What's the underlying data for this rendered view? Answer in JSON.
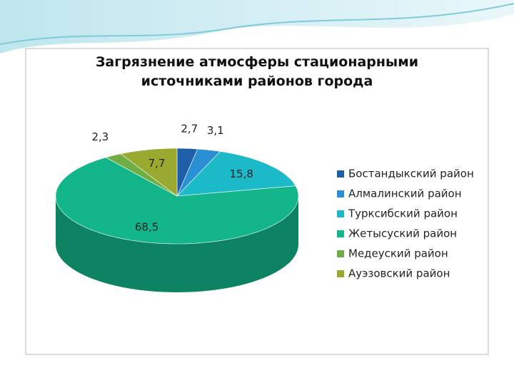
{
  "chart_data": {
    "type": "pie3d",
    "title": "Загрязнение  атмосферы стационарными\nисточниками районов города",
    "categories": [
      "Бостандыкский район",
      "Алмалинский район",
      "Турксибский район",
      "Жетысуский район",
      "Медеуский район",
      "Ауэзовский район"
    ],
    "values": [
      2.7,
      3.1,
      15.8,
      68.5,
      2.3,
      7.7
    ],
    "value_labels": [
      "2,7",
      "3,1",
      "15,8",
      "68,5",
      "2,3",
      "7,7"
    ],
    "colors": [
      "#1f5ea8",
      "#2b8fd3",
      "#1cb9c9",
      "#13b68b",
      "#6fae45",
      "#9aa92f"
    ],
    "legend": "right"
  }
}
